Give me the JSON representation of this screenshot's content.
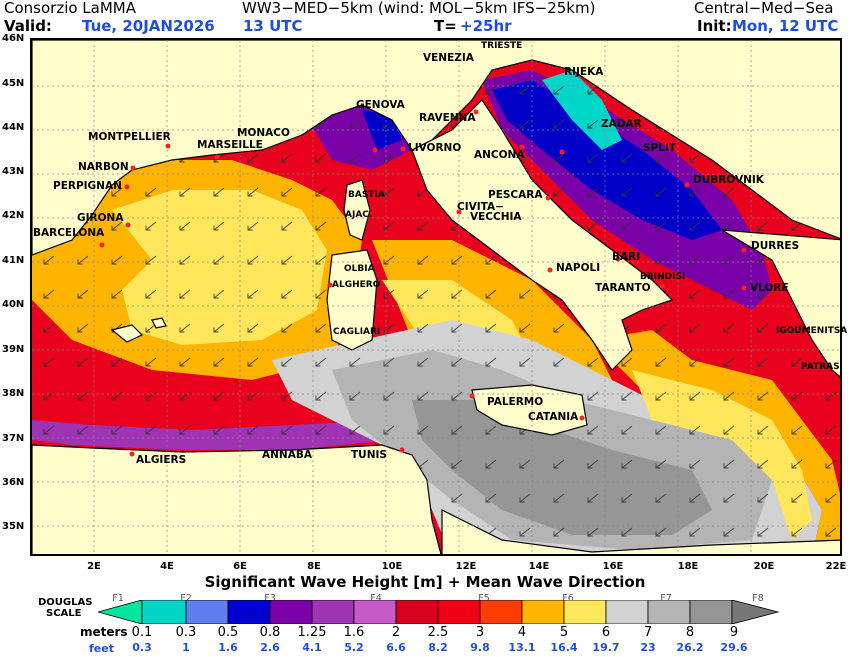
{
  "header": {
    "org": "Consorzio LaMMA",
    "model": "WW3−MED−5km (wind: MOL−5km IFS−25km)",
    "region": "Central−Med−Sea",
    "valid_label": "Valid:",
    "valid_date": "Tue, 20JAN2026",
    "valid_hour": "13 UTC",
    "t_label": "T=",
    "t_value": "+25hr",
    "init_label": "Init:",
    "init_value": "Mon, 12 UTC"
  },
  "axes": {
    "lat_ticks": [
      "46N",
      "45N",
      "44N",
      "43N",
      "42N",
      "41N",
      "40N",
      "39N",
      "38N",
      "37N",
      "36N",
      "35N"
    ],
    "lon_ticks": [
      "2E",
      "4E",
      "6E",
      "8E",
      "10E",
      "12E",
      "14E",
      "16E",
      "18E",
      "20E",
      "22E"
    ]
  },
  "cities": [
    "TRIESTE",
    "VENEZIA",
    "RIJEKA",
    "GENOVA",
    "RAVENNA",
    "ZADAR",
    "MONTPELLIER",
    "MONACO",
    "MARSEILLE",
    "LIVORNO",
    "ANCONA",
    "SPLIT",
    "NARBON",
    "PERPIGNAN",
    "DUBROVNIK",
    "BASTIA",
    "PESCARA",
    "CIVITA−",
    "VECCHIA",
    "AJAC.",
    "GIRONA",
    "BARCELONA",
    "DURRES",
    "BARI",
    "NAPOLI",
    "OLBIA",
    "BRINDISI",
    "TARANTO",
    "ALGHERO",
    "VLORE",
    "CAGLIARI",
    "IGOUMENITSA",
    "PATRAS",
    "PALERMO",
    "CATANIA",
    "ALGIERS",
    "ANNABA",
    "TUNIS"
  ],
  "footer": {
    "title": "Significant Wave Height [m] + Mean Wave Direction",
    "douglas_label_1": "DOUGLAS",
    "douglas_label_2": "SCALE",
    "meters_label": "meters",
    "feet_label": "feet",
    "douglas_numbers": [
      "F1",
      "F2",
      "F3",
      "F4",
      "F5",
      "F6",
      "F7",
      "F8"
    ],
    "meters": [
      "0.1",
      "0.3",
      "0.5",
      "0.8",
      "1.25",
      "1.6",
      "2",
      "2.5",
      "3",
      "4",
      "5",
      "6",
      "7",
      "8",
      "9"
    ],
    "feet": [
      "0.3",
      "1",
      "1.6",
      "2.6",
      "4.1",
      "5.2",
      "6.6",
      "8.2",
      "9.8",
      "13.1",
      "16.4",
      "19.7",
      "23",
      "26.2",
      "29.6"
    ],
    "colors": [
      "#00e69c",
      "#00d6c8",
      "#5f7ff0",
      "#0000d0",
      "#7a00a8",
      "#a032b4",
      "#c85ac8",
      "#d8001c",
      "#f00014",
      "#ff3c00",
      "#ffb400",
      "#ffe65a",
      "#d2d2d2",
      "#b4b4b4",
      "#969696",
      "#787878"
    ]
  },
  "legend_colors": {
    "land": "#ffffcc",
    "calm": "#ffe65a",
    "moderate": "#ffb400",
    "rough": "#e8001c",
    "very_rough": "#a0a0a0",
    "adriatic": "#0000c8"
  }
}
